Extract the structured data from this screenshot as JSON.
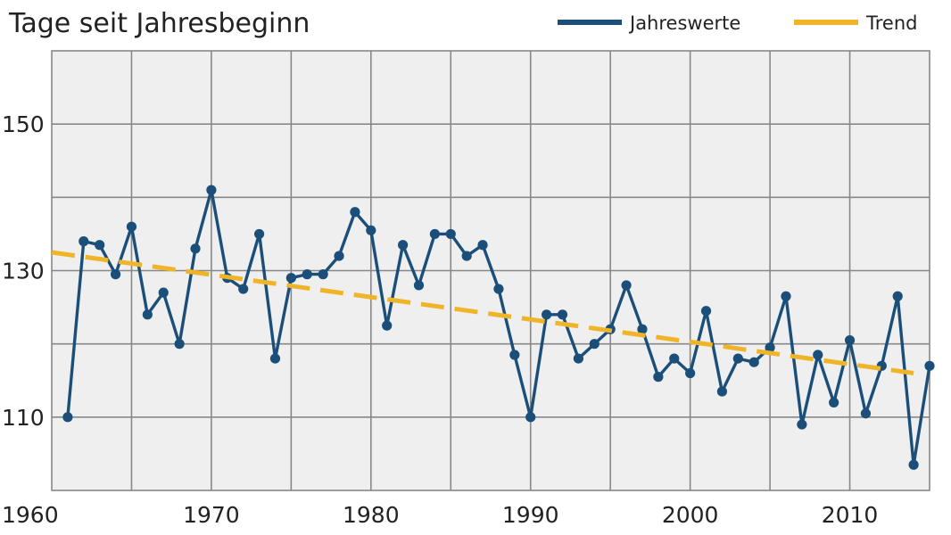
{
  "chart_data": {
    "type": "line",
    "title": "Tage seit Jahresbeginn",
    "xlabel": "",
    "ylabel": "",
    "xlim": [
      1960,
      2015
    ],
    "ylim": [
      100,
      160
    ],
    "x_ticks": [
      1960,
      1970,
      1980,
      1990,
      2000,
      2010
    ],
    "x_tick_labels": [
      "1960",
      "1970",
      "1980",
      "1990",
      "2000",
      "2010"
    ],
    "y_ticks": [
      110,
      130,
      150
    ],
    "y_tick_labels": [
      "110",
      "130",
      "150"
    ],
    "grid": true,
    "legend_position": "top-right",
    "series": [
      {
        "name": "Jahreswerte",
        "color": "#1b4f7a",
        "style": "solid-with-markers",
        "x": [
          1961,
          1962,
          1963,
          1964,
          1965,
          1966,
          1967,
          1968,
          1969,
          1970,
          1971,
          1972,
          1973,
          1974,
          1975,
          1976,
          1977,
          1978,
          1979,
          1980,
          1981,
          1982,
          1983,
          1984,
          1985,
          1986,
          1987,
          1988,
          1989,
          1990,
          1991,
          1992,
          1993,
          1994,
          1995,
          1996,
          1997,
          1998,
          1999,
          2000,
          2001,
          2002,
          2003,
          2004,
          2005,
          2006,
          2007,
          2008,
          2009,
          2010,
          2011,
          2012,
          2013,
          2014,
          2015
        ],
        "y": [
          110,
          134,
          133.5,
          129.5,
          136,
          124,
          127,
          120,
          133,
          141,
          129,
          127.5,
          135,
          118,
          129,
          129.5,
          129.5,
          132,
          138,
          135.5,
          122.5,
          133.5,
          128,
          135,
          135,
          132,
          133.5,
          127.5,
          118.5,
          110,
          124,
          124,
          118,
          120,
          122,
          128,
          122,
          115.5,
          118,
          116,
          124.5,
          113.5,
          118,
          117.5,
          119.5,
          126.5,
          109,
          118.5,
          112,
          120.5,
          110.5,
          117,
          126.5,
          103.5,
          117
        ]
      },
      {
        "name": "Trend",
        "color": "#f0b429",
        "style": "dashed",
        "x": [
          1960,
          2014
        ],
        "y": [
          132.5,
          116
        ]
      }
    ]
  },
  "colors": {
    "plot_background": "#efefef",
    "grid": "#888888",
    "axis_text": "#222222"
  }
}
